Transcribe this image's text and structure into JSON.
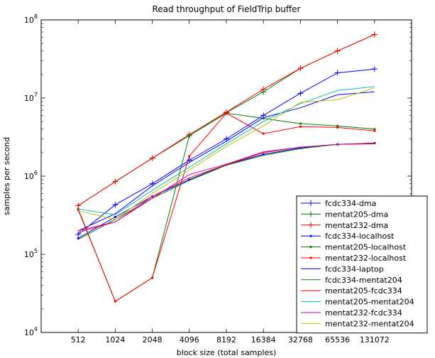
{
  "chart_data": {
    "type": "line",
    "title": "Read throughput of FieldTrip buffer",
    "xlabel": "block size (total samples)",
    "ylabel": "samples per second",
    "x_scale": "log2",
    "y_scale": "log10",
    "xlim": [
      256,
      262144
    ],
    "ylim": [
      10000,
      100000000
    ],
    "x": [
      512,
      1024,
      2048,
      4096,
      8192,
      16384,
      32768,
      65536,
      131072
    ],
    "x_tick_labels": [
      "512",
      "1024",
      "2048",
      "4096",
      "8192",
      "16384",
      "32768",
      "65536",
      "131072"
    ],
    "y_ticks": [
      10000,
      100000,
      1000000,
      10000000,
      100000000
    ],
    "y_tick_labels": [
      {
        "base": "10",
        "exp": "4"
      },
      {
        "base": "10",
        "exp": "5"
      },
      {
        "base": "10",
        "exp": "6"
      },
      {
        "base": "10",
        "exp": "7"
      },
      {
        "base": "10",
        "exp": "8"
      }
    ],
    "grid": false,
    "legend_position": "lower-right",
    "series": [
      {
        "name": "fcdc334-dma",
        "color": "#0000ff",
        "marker": "plus",
        "values": [
          180000,
          430000,
          800000,
          1600000,
          3000000,
          6000000,
          11500000,
          21000000,
          23500000
        ]
      },
      {
        "name": "mentat205-dma",
        "color": "#008000",
        "marker": "plus",
        "values": [
          420000,
          850000,
          1700000,
          3300000,
          6500000,
          12000000,
          24000000,
          40000000,
          65000000
        ]
      },
      {
        "name": "mentat232-dma",
        "color": "#ff0000",
        "marker": "plus",
        "values": [
          420000,
          850000,
          1700000,
          3400000,
          6600000,
          13000000,
          24000000,
          40000000,
          65000000
        ]
      },
      {
        "name": "fcdc334-localhost",
        "color": "#0000ff",
        "marker": "dot",
        "values": [
          160000,
          300000,
          550000,
          900000,
          1400000,
          1900000,
          2300000,
          2550000,
          2650000
        ]
      },
      {
        "name": "mentat205-localhost",
        "color": "#008000",
        "marker": "dot",
        "values": [
          380000,
          25000,
          50000,
          3300000,
          6400000,
          5500000,
          4700000,
          4400000,
          4000000
        ]
      },
      {
        "name": "mentat232-localhost",
        "color": "#ff0000",
        "marker": "dot",
        "values": [
          370000,
          25000,
          50000,
          1800000,
          6400000,
          3500000,
          4300000,
          4200000,
          3800000
        ]
      },
      {
        "name": "fcdc334-laptop",
        "color": "#0000ff",
        "marker": "none",
        "values": [
          200000,
          330000,
          750000,
          1500000,
          2800000,
          5600000,
          7500000,
          11000000,
          12000000
        ]
      },
      {
        "name": "fcdc334-mentat204",
        "color": "#008000",
        "marker": "none",
        "values": [
          155000,
          280000,
          520000,
          880000,
          1380000,
          1850000,
          2250000,
          2550000,
          2650000
        ]
      },
      {
        "name": "mentat205-fcdc334",
        "color": "#ff0000",
        "marker": "none",
        "values": [
          200000,
          260000,
          550000,
          950000,
          1400000,
          2000000,
          2350000,
          2550000,
          2600000
        ]
      },
      {
        "name": "mentat205-mentat204",
        "color": "#00bfbf",
        "marker": "none",
        "values": [
          380000,
          320000,
          660000,
          1300000,
          2600000,
          5000000,
          8500000,
          12500000,
          14000000
        ]
      },
      {
        "name": "mentat232-fcdc334",
        "color": "#bf00bf",
        "marker": "none",
        "values": [
          190000,
          260000,
          520000,
          1050000,
          1420000,
          2050000,
          2350000,
          2550000,
          2650000
        ]
      },
      {
        "name": "mentat232-mentat204",
        "color": "#bfbf00",
        "marker": "none",
        "values": [
          360000,
          280000,
          600000,
          1200000,
          2400000,
          4400000,
          8800000,
          9500000,
          13500000
        ]
      }
    ]
  }
}
